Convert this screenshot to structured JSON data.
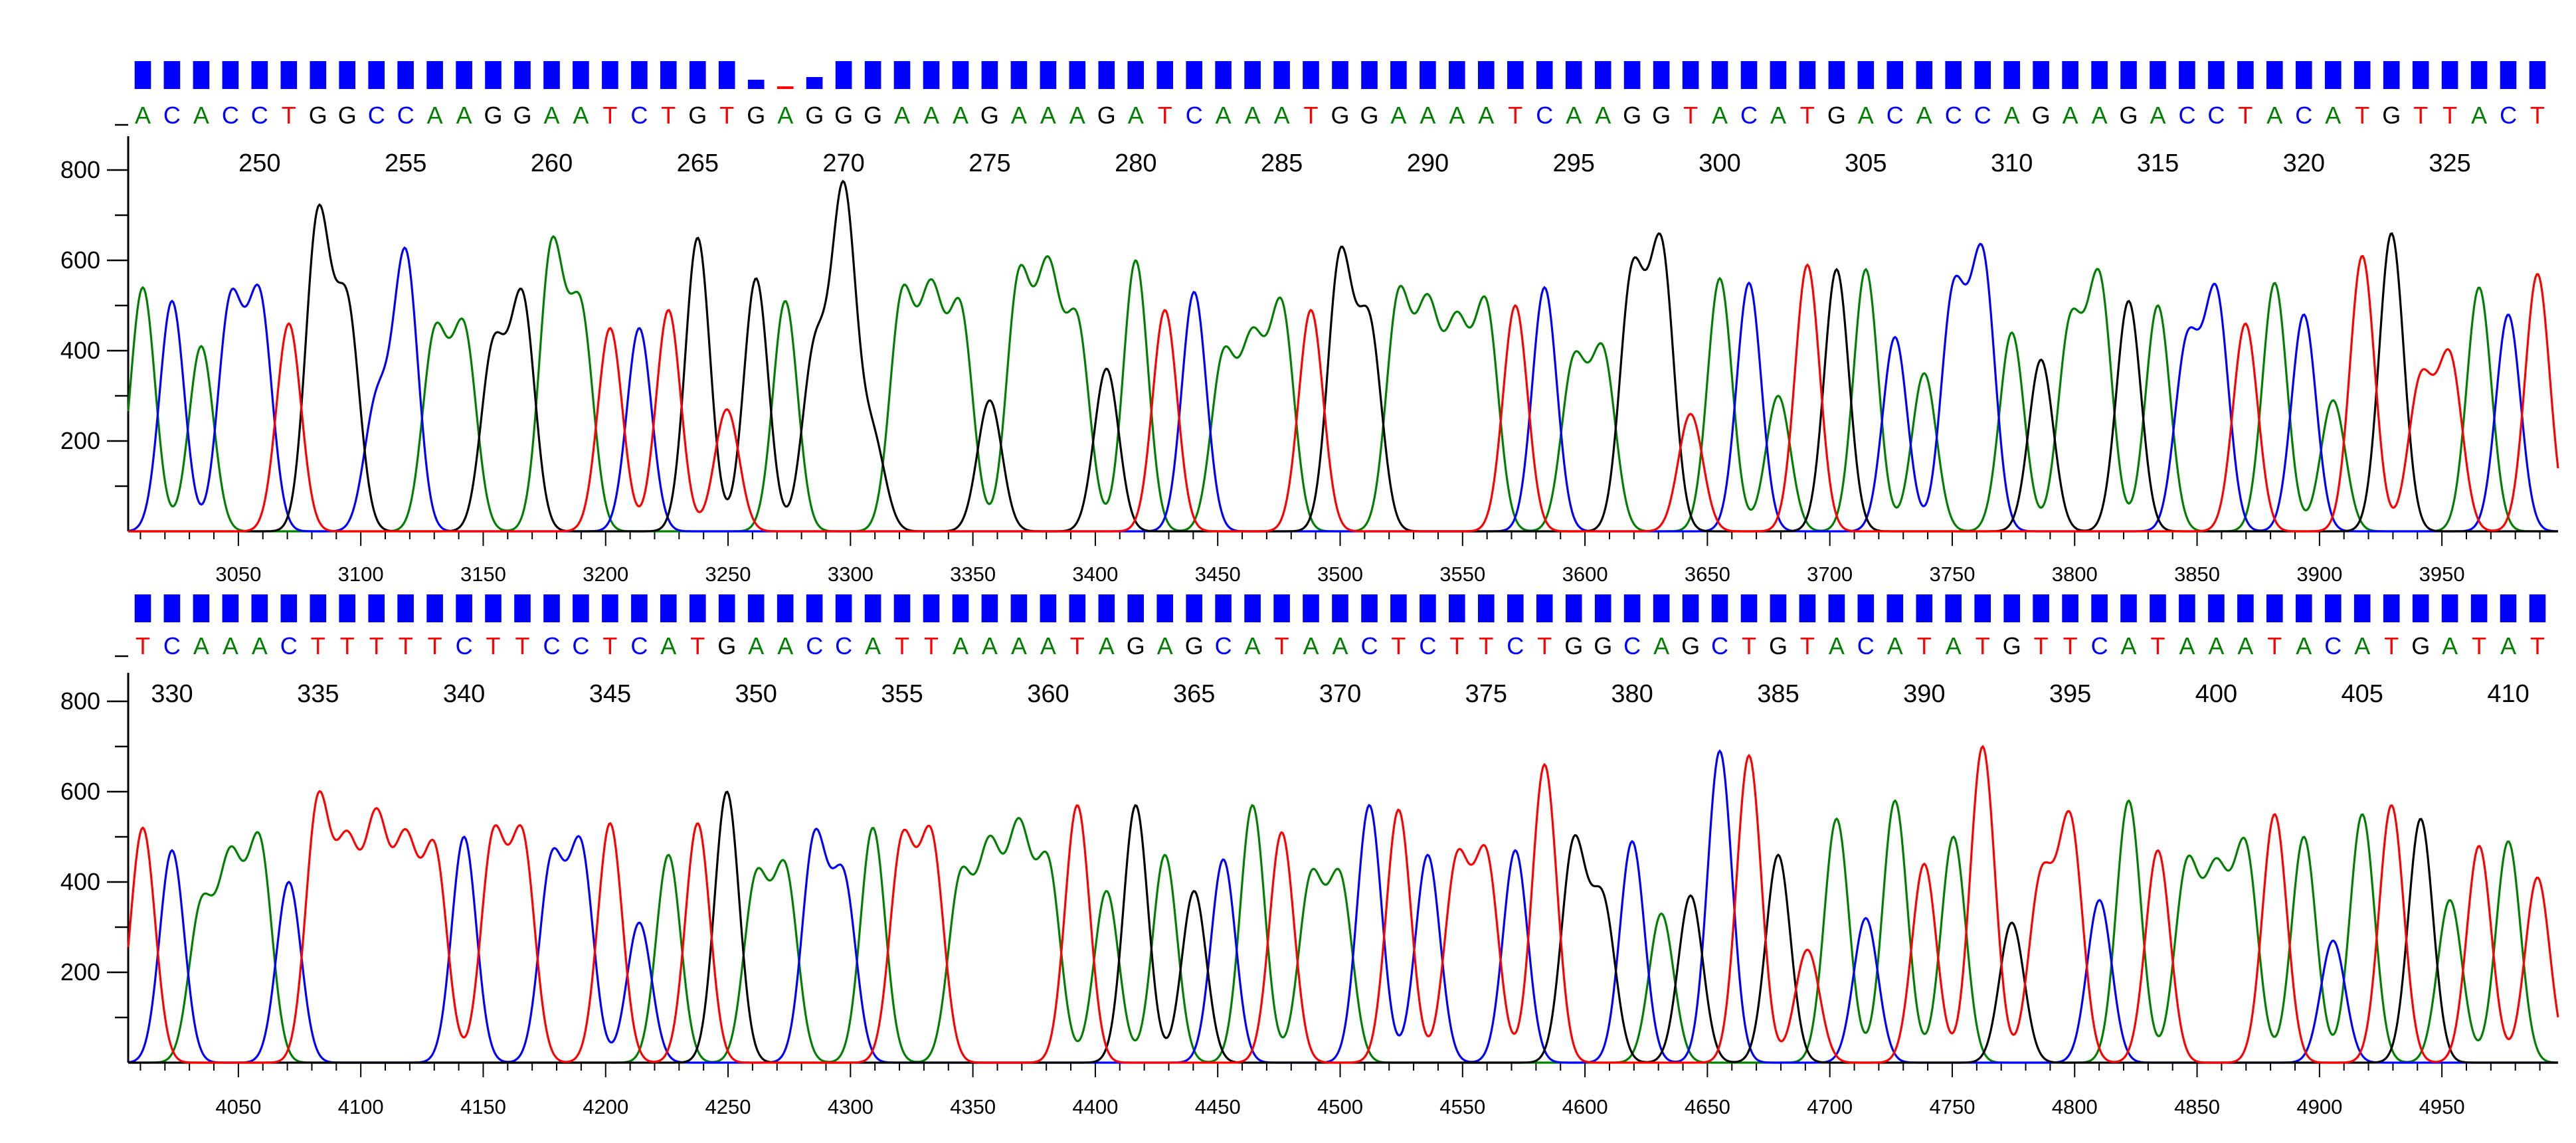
{
  "chart_data": [
    {
      "type": "line",
      "title": "",
      "xlabel": "",
      "ylabel": "",
      "ylim": [
        0,
        900
      ],
      "xlim": [
        3005,
        3995
      ],
      "yticks": [
        200,
        400,
        600,
        800
      ],
      "xticks": [
        3050,
        3100,
        3150,
        3200,
        3250,
        3300,
        3350,
        3400,
        3450,
        3500,
        3550,
        3600,
        3650,
        3700,
        3750,
        3800,
        3850,
        3900,
        3950
      ],
      "base_start": 246,
      "sequence": "ACACCTGGCCAAGGAATCTGTGAGGGAAAGAAAGATCAAATGGAAAATCAAGGTACATGACACCAGAAGACCTACATGTTACT",
      "position_labels": [
        "250",
        "255",
        "260",
        "265",
        "270",
        "275",
        "280",
        "285",
        "290",
        "295",
        "300",
        "305",
        "310",
        "315",
        "320",
        "325"
      ],
      "quality_dips": [
        21,
        22,
        23
      ],
      "peak_heights": [
        540,
        510,
        410,
        500,
        510,
        460,
        690,
        490,
        280,
        610,
        430,
        440,
        400,
        510,
        620,
        480,
        450,
        450,
        490,
        650,
        270,
        560,
        510,
        390,
        740,
        200,
        510,
        500,
        480,
        290,
        550,
        550,
        450,
        360,
        600,
        490,
        530,
        380,
        400,
        490,
        490,
        600,
        450,
        510,
        470,
        430,
        490,
        500,
        540,
        370,
        390,
        560,
        620,
        260,
        560,
        550,
        300,
        590,
        580,
        580,
        430,
        350,
        520,
        600,
        440,
        380,
        450,
        550,
        510,
        500,
        410,
        520,
        460,
        550,
        480,
        290,
        610,
        660,
        330,
        380,
        540,
        480,
        570
      ]
    },
    {
      "type": "line",
      "title": "",
      "xlabel": "",
      "ylabel": "",
      "ylim": [
        0,
        900
      ],
      "xlim": [
        4005,
        4995
      ],
      "yticks": [
        200,
        400,
        600,
        800
      ],
      "xticks": [
        4050,
        4100,
        4150,
        4200,
        4250,
        4300,
        4350,
        4400,
        4450,
        4500,
        4550,
        4600,
        4650,
        4700,
        4750,
        4800,
        4850,
        4900,
        4950
      ],
      "base_start": 329,
      "sequence": "TCAAACTTTTTCTTCCTCATGAACCATTAAAATAGAGCATAACTCTTCTGGCAGCTGTACATATGTTCATAAATACATGATAT",
      "position_labels": [
        "330",
        "335",
        "340",
        "345",
        "350",
        "355",
        "360",
        "365",
        "370",
        "375",
        "380",
        "385",
        "390",
        "395",
        "400",
        "405",
        "410"
      ],
      "quality_dips": [],
      "peak_heights": [
        520,
        470,
        340,
        430,
        480,
        400,
        570,
        450,
        510,
        460,
        460,
        500,
        490,
        490,
        440,
        470,
        530,
        310,
        460,
        530,
        600,
        400,
        420,
        490,
        400,
        520,
        480,
        490,
        400,
        450,
        490,
        430,
        570,
        380,
        570,
        460,
        380,
        450,
        570,
        510,
        400,
        400,
        570,
        560,
        460,
        440,
        450,
        470,
        660,
        480,
        350,
        490,
        330,
        370,
        690,
        680,
        460,
        250,
        540,
        320,
        580,
        440,
        500,
        700,
        310,
        400,
        530,
        360,
        580,
        470,
        430,
        400,
        470,
        550,
        500,
        270,
        550,
        570,
        540,
        360,
        480,
        490,
        410
      ]
    }
  ],
  "colors": {
    "A": "#008000",
    "C": "#0000ff",
    "G": "#000000",
    "T": "#ff0000",
    "quality": "#0000ff"
  }
}
